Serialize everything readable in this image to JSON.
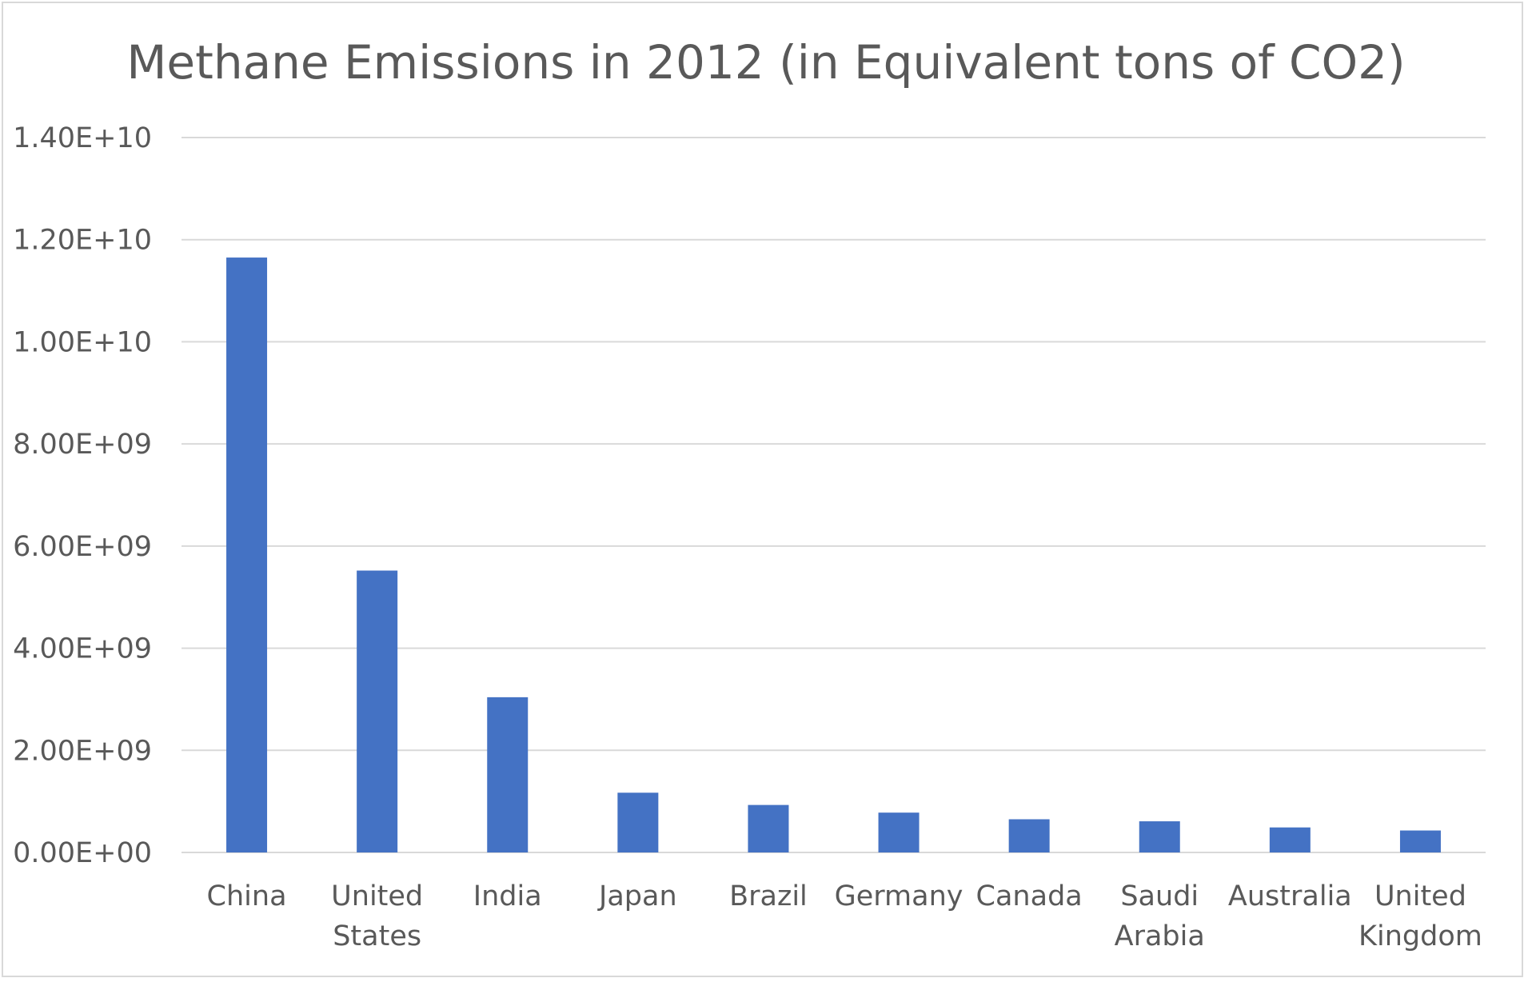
{
  "chart_data": {
    "type": "bar",
    "title": "Methane Emissions in 2012  (in Equivalent tons of CO2)",
    "categories": [
      [
        "China"
      ],
      [
        "United",
        "States"
      ],
      [
        "India"
      ],
      [
        "Japan"
      ],
      [
        "Brazil"
      ],
      [
        "Germany"
      ],
      [
        "Canada"
      ],
      [
        "Saudi",
        "Arabia"
      ],
      [
        "Australia"
      ],
      [
        "United",
        "Kingdom"
      ]
    ],
    "values": [
      11650000000,
      5520000000,
      3040000000,
      1170000000,
      930000000,
      780000000,
      650000000,
      610000000,
      490000000,
      430000000
    ],
    "ylim": [
      0,
      14000000000
    ],
    "yticks": [
      0,
      2000000000,
      4000000000,
      6000000000,
      8000000000,
      10000000000,
      12000000000,
      14000000000
    ],
    "ytick_labels": [
      "0.00E+00",
      "2.00E+09",
      "4.00E+09",
      "6.00E+09",
      "8.00E+09",
      "1.00E+10",
      "1.20E+10",
      "1.40E+10"
    ],
    "grid": true,
    "bar_color": "#4472c4"
  }
}
